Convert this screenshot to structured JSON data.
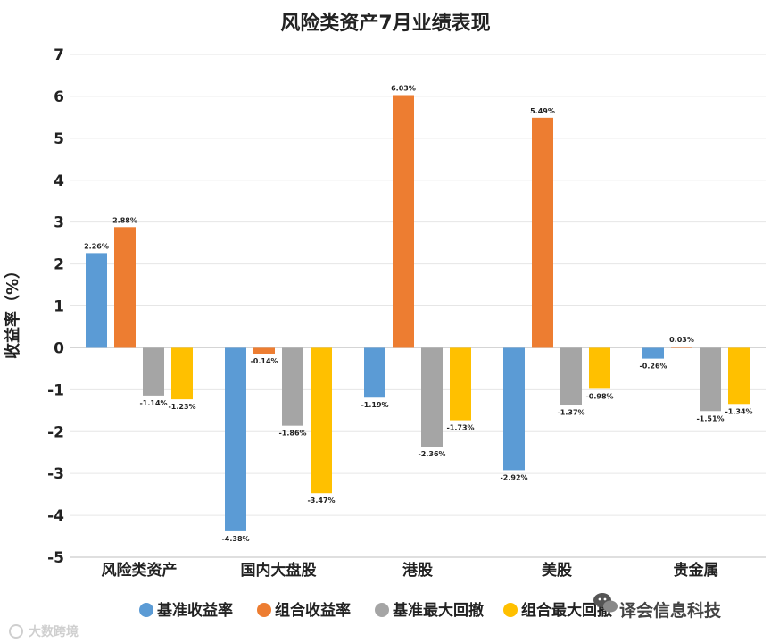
{
  "chart_data": {
    "type": "bar",
    "title": "风险类资产7月业绩表现",
    "ylabel": "收益率（%）",
    "categories": [
      "风险类资产",
      "国内大盘股",
      "港股",
      "美股",
      "贵金属"
    ],
    "ylim": [
      -5,
      7
    ],
    "yticks": [
      7,
      6,
      5,
      4,
      3,
      2,
      1,
      0,
      -1,
      -2,
      -3,
      -4,
      -5
    ],
    "grid": true,
    "legend_position": "bottom",
    "series": [
      {
        "name": "基准收益率",
        "color": "#5b9bd5",
        "values": [
          2.26,
          -4.38,
          -1.19,
          -2.92,
          -0.26
        ],
        "labels": [
          "2.26%",
          "-4.38%",
          "-1.19%",
          "-2.92%",
          "-0.26%"
        ]
      },
      {
        "name": "组合收益率",
        "color": "#ed7d31",
        "values": [
          2.88,
          -0.14,
          6.03,
          5.49,
          0.03
        ],
        "labels": [
          "2.88%",
          "-0.14%",
          "6.03%",
          "5.49%",
          "0.03%"
        ]
      },
      {
        "name": "基准最大回撤",
        "color": "#a5a5a5",
        "values": [
          -1.14,
          -1.86,
          -2.36,
          -1.37,
          -1.51
        ],
        "labels": [
          "-1.14%",
          "-1.86%",
          "-2.36%",
          "-1.37%",
          "-1.51%"
        ]
      },
      {
        "name": "组合最大回撤",
        "color": "#ffc000",
        "values": [
          -1.23,
          -3.47,
          -1.73,
          -0.98,
          -1.34
        ],
        "labels": [
          "-1.23%",
          "-3.47%",
          "-1.73%",
          "-0.98%",
          "-1.34%"
        ]
      }
    ]
  },
  "watermarks": {
    "wechat_account": "译会信息科技",
    "bottom_left": "大数跨境"
  }
}
